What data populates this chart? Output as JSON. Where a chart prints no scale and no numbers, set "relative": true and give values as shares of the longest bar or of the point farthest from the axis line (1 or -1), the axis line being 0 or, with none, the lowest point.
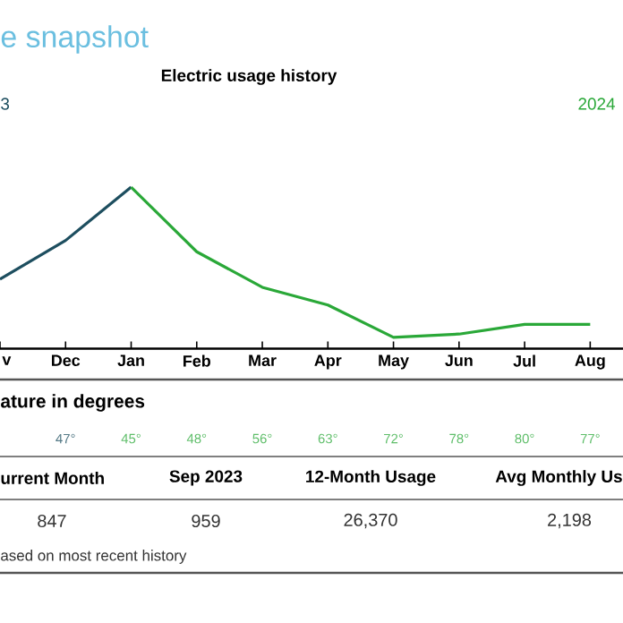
{
  "chart_data": {
    "type": "line",
    "title": "e snapshot",
    "subtitle": "Electric usage history",
    "categories": [
      "v",
      "Dec",
      "Jan",
      "Feb",
      "Mar",
      "Apr",
      "May",
      "Jun",
      "Jul",
      "Aug"
    ],
    "relative": true,
    "marker": "none",
    "series": [
      {
        "name": "3",
        "color": "#1d4e5f",
        "values": [
          0.43,
          0.67,
          1,
          null,
          null,
          null,
          null,
          null,
          null,
          null
        ]
      },
      {
        "name": "2024",
        "color": "#2aa838",
        "values": [
          null,
          null,
          1,
          0.6,
          0.38,
          0.27,
          0.07,
          0.09,
          0.15,
          0.15
        ]
      }
    ],
    "annotations": [
      "ature in degrees",
      "47°",
      "45°",
      "48°",
      "56°",
      "63°",
      "72°",
      "78°",
      "80°",
      "77°",
      "urrent Month",
      "Sep 2023",
      "12-Month Usage",
      "Avg Monthly Us",
      "847",
      "959",
      "26,370",
      "2,198",
      "ased on most recent history"
    ]
  }
}
